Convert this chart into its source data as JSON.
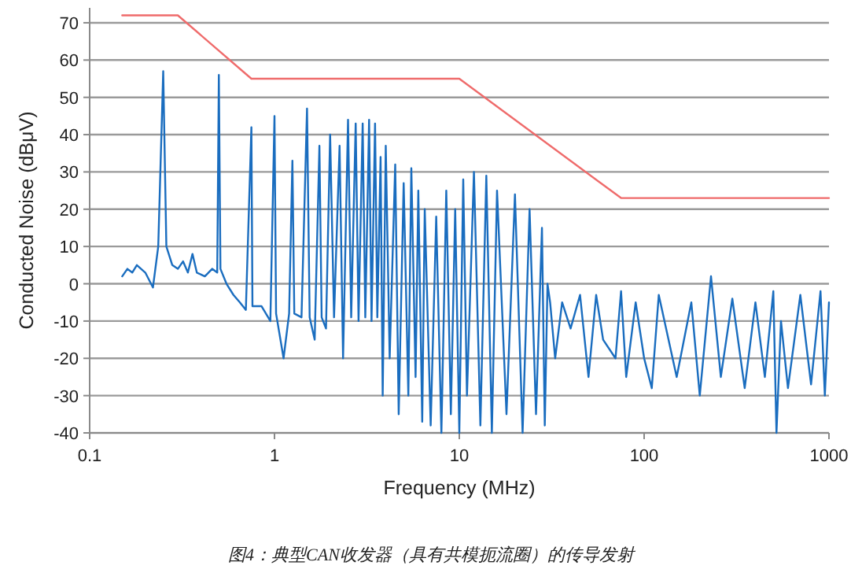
{
  "chart_data": {
    "type": "line",
    "xlabel": "Frequency (MHz)",
    "ylabel": "Conducted Noise (dBμV)",
    "annotations": [
      "图4：典型CAN收发器（具有共模扼流圈）的传导发射"
    ],
    "log": "x",
    "grid": "y",
    "xlim": [
      0.1,
      1000
    ],
    "xticks": [
      0.1,
      1,
      10,
      100,
      1000
    ],
    "ylim": [
      -40,
      74
    ],
    "yticks": [
      -40,
      -30,
      -20,
      -10,
      0,
      10,
      20,
      30,
      40,
      50,
      60,
      70
    ],
    "series": [
      {
        "color": "#ef6b6b",
        "x": [
          0.15,
          0.3,
          0.75,
          10,
          75,
          1000
        ],
        "values": [
          72,
          72,
          55,
          55,
          23,
          23
        ]
      },
      {
        "color": "#1a6dbf",
        "x": [
          0.15,
          0.16,
          0.17,
          0.18,
          0.2,
          0.22,
          0.235,
          0.25,
          0.26,
          0.28,
          0.3,
          0.32,
          0.34,
          0.36,
          0.38,
          0.42,
          0.46,
          0.49,
          0.5,
          0.51,
          0.55,
          0.6,
          0.65,
          0.7,
          0.75,
          0.76,
          0.85,
          0.95,
          1.0,
          1.02,
          1.12,
          1.2,
          1.25,
          1.28,
          1.4,
          1.5,
          1.55,
          1.65,
          1.75,
          1.8,
          1.9,
          2.0,
          2.1,
          2.25,
          2.35,
          2.5,
          2.6,
          2.75,
          2.85,
          3.0,
          3.1,
          3.25,
          3.35,
          3.5,
          3.6,
          3.75,
          3.85,
          4.0,
          4.2,
          4.5,
          4.7,
          5.0,
          5.3,
          5.5,
          5.8,
          6.0,
          6.3,
          6.5,
          7.0,
          7.5,
          8.0,
          8.5,
          9.0,
          9.5,
          10,
          10.5,
          11,
          12,
          13,
          14,
          15,
          16,
          18,
          20,
          22,
          24,
          26,
          28,
          29,
          30,
          31,
          33,
          36,
          40,
          45,
          50,
          55,
          60,
          70,
          75,
          80,
          90,
          100,
          110,
          120,
          150,
          180,
          200,
          230,
          260,
          300,
          350,
          400,
          450,
          500,
          520,
          550,
          600,
          700,
          800,
          900,
          950,
          1000
        ],
        "values": [
          2,
          4,
          3,
          5,
          3,
          -1,
          10,
          57,
          10,
          5,
          4,
          6,
          3,
          8,
          3,
          2,
          4,
          3,
          56,
          4,
          0,
          -3,
          -5,
          -7,
          42,
          -6,
          -6,
          -10,
          45,
          -8,
          -20,
          -8,
          33,
          -8,
          -9,
          47,
          -9,
          -15,
          37,
          -9,
          -12,
          40,
          -9,
          37,
          -20,
          44,
          -9,
          43,
          -10,
          43,
          -9,
          44,
          -10,
          43,
          -9,
          34,
          -30,
          37,
          -20,
          32,
          -35,
          27,
          -30,
          31,
          -25,
          25,
          -37,
          20,
          -38,
          18,
          -40,
          25,
          -35,
          20,
          -40,
          28,
          -30,
          30,
          -38,
          29,
          -40,
          25,
          -35,
          24,
          -40,
          20,
          -35,
          15,
          -38,
          0,
          -5,
          -20,
          -5,
          -12,
          -3,
          -25,
          -3,
          -15,
          -20,
          -2,
          -25,
          -5,
          -20,
          -28,
          -3,
          -25,
          -5,
          -30,
          2,
          -25,
          -4,
          -28,
          -5,
          -25,
          -2,
          -40,
          -10,
          -28,
          -3,
          -27,
          -2,
          -30,
          -5
        ]
      }
    ]
  }
}
